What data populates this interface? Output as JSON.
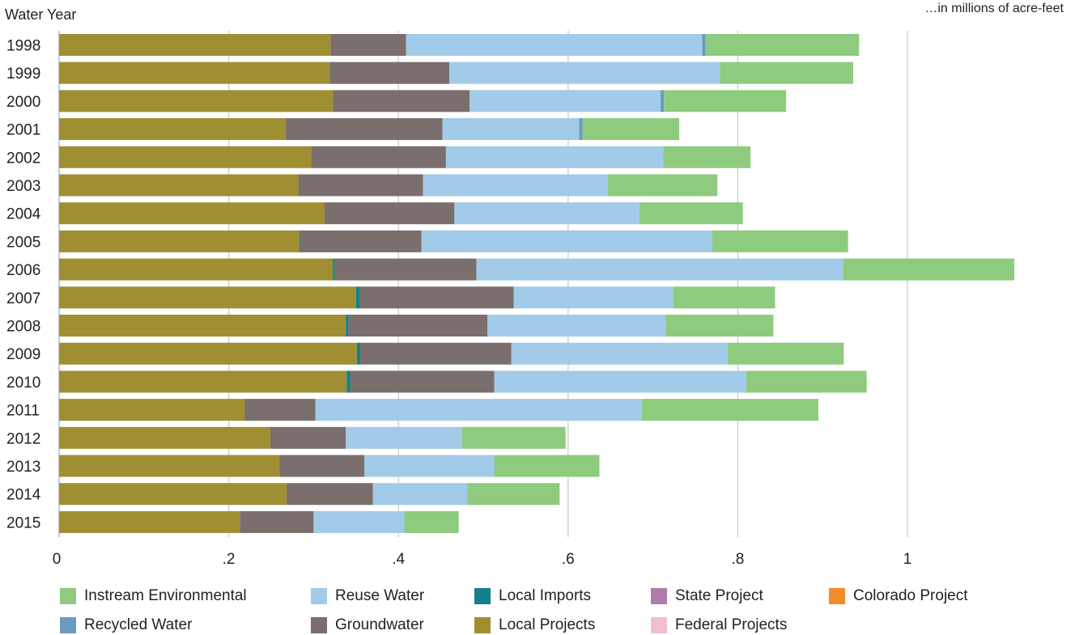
{
  "chart_data": {
    "type": "bar",
    "orientation": "horizontal",
    "stacked": true,
    "ylabel": "Water Year",
    "unit_note": "…in millions of acre-feet",
    "categories": [
      "1998",
      "1999",
      "2000",
      "2001",
      "2002",
      "2003",
      "2004",
      "2005",
      "2006",
      "2007",
      "2008",
      "2009",
      "2010",
      "2011",
      "2012",
      "2013",
      "2014",
      "2015"
    ],
    "xlim": [
      0,
      1.14
    ],
    "x_ticks": [
      {
        "value": 0,
        "label": "0"
      },
      {
        "value": 0.2,
        "label": ".2"
      },
      {
        "value": 0.4,
        "label": ".4"
      },
      {
        "value": 0.6,
        "label": ".6"
      },
      {
        "value": 0.8,
        "label": ".8"
      },
      {
        "value": 1.0,
        "label": "1"
      }
    ],
    "grid": true,
    "series": [
      {
        "name": "Local Projects",
        "color": "#a08f32",
        "values": [
          0.32,
          0.319,
          0.323,
          0.267,
          0.297,
          0.282,
          0.313,
          0.283,
          0.323,
          0.35,
          0.338,
          0.351,
          0.339,
          0.219,
          0.249,
          0.26,
          0.268,
          0.213
        ]
      },
      {
        "name": "Local Imports",
        "color": "#14808a",
        "values": [
          0,
          0,
          0,
          0,
          0,
          0,
          0,
          0.001,
          0.002,
          0.004,
          0.003,
          0.004,
          0.004,
          0,
          0,
          0,
          0,
          0
        ]
      },
      {
        "name": "Groundwater",
        "color": "#7a6f6c",
        "values": [
          0.089,
          0.141,
          0.161,
          0.185,
          0.159,
          0.147,
          0.153,
          0.143,
          0.167,
          0.182,
          0.164,
          0.178,
          0.17,
          0.083,
          0.089,
          0.1,
          0.102,
          0.087
        ]
      },
      {
        "name": "Reuse Water",
        "color": "#a1cbe8",
        "values": [
          0.349,
          0.319,
          0.225,
          0.161,
          0.256,
          0.218,
          0.218,
          0.343,
          0.432,
          0.188,
          0.21,
          0.255,
          0.297,
          0.385,
          0.137,
          0.153,
          0.111,
          0.107
        ]
      },
      {
        "name": "Recycled Water",
        "color": "#6b9ac4",
        "values": [
          0.004,
          0,
          0.004,
          0.004,
          0,
          0,
          0,
          0,
          0,
          0,
          0,
          0,
          0,
          0,
          0,
          0,
          0,
          0
        ]
      },
      {
        "name": "Instream Environmental",
        "color": "#8ecb7e",
        "values": [
          0.181,
          0.157,
          0.144,
          0.114,
          0.103,
          0.129,
          0.122,
          0.16,
          0.202,
          0.12,
          0.127,
          0.137,
          0.142,
          0.208,
          0.122,
          0.124,
          0.109,
          0.064
        ]
      },
      {
        "name": "State Project",
        "color": "#b07cab",
        "values": [
          0,
          0,
          0,
          0,
          0,
          0,
          0,
          0,
          0,
          0,
          0,
          0,
          0,
          0,
          0,
          0,
          0,
          0
        ]
      },
      {
        "name": "Colorado Project",
        "color": "#f28c28",
        "values": [
          0,
          0,
          0,
          0,
          0,
          0,
          0,
          0,
          0,
          0,
          0,
          0,
          0,
          0,
          0,
          0,
          0,
          0
        ]
      },
      {
        "name": "Federal Projects",
        "color": "#f4bdd0",
        "values": [
          0,
          0,
          0,
          0,
          0,
          0,
          0,
          0,
          0,
          0,
          0,
          0,
          0,
          0,
          0,
          0,
          0,
          0
        ]
      }
    ]
  },
  "legend": [
    {
      "label": "Instream Environmental",
      "color": "#8ecb7e"
    },
    {
      "label": "Reuse Water",
      "color": "#a1cbe8"
    },
    {
      "label": "Local Imports",
      "color": "#14808a"
    },
    {
      "label": "State Project",
      "color": "#b07cab"
    },
    {
      "label": "Colorado Project",
      "color": "#f28c28"
    },
    {
      "label": "Recycled Water",
      "color": "#6b9ac4"
    },
    {
      "label": "Groundwater",
      "color": "#7a6f6c"
    },
    {
      "label": "Local Projects",
      "color": "#a08f32"
    },
    {
      "label": "Federal Projects",
      "color": "#f4bdd0"
    }
  ]
}
